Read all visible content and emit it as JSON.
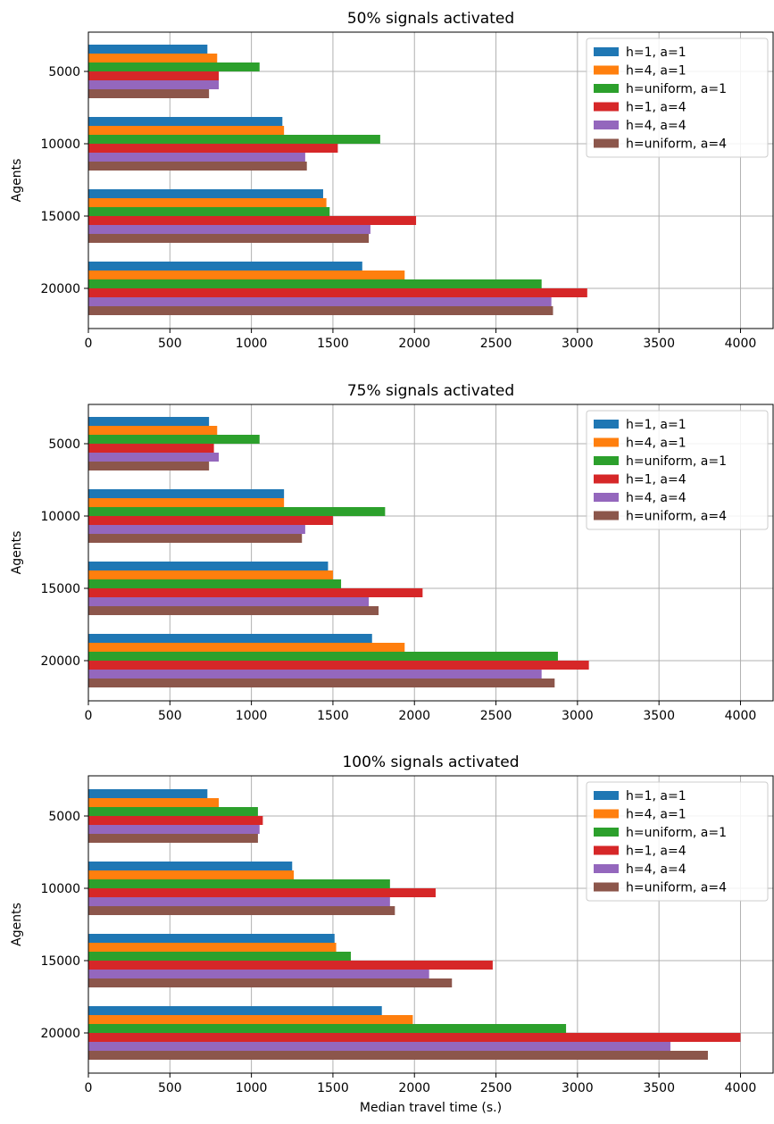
{
  "chart_data": [
    {
      "type": "bar",
      "orientation": "horizontal",
      "title": "50% signals activated",
      "xlabel": "",
      "ylabel": "Agents",
      "categories": [
        "5000",
        "10000",
        "15000",
        "20000"
      ],
      "xlim": [
        0,
        4200
      ],
      "xticks": [
        "0",
        "500",
        "1000",
        "1500",
        "2000",
        "2500",
        "3000",
        "3500",
        "4000"
      ],
      "grid": true,
      "legend_position": "top-right",
      "series": [
        {
          "name": "h=1, a=1",
          "color": "#1f77b4",
          "values": [
            730,
            1190,
            1440,
            1680
          ]
        },
        {
          "name": "h=4, a=1",
          "color": "#ff7f0e",
          "values": [
            790,
            1200,
            1460,
            1940
          ]
        },
        {
          "name": "h=uniform, a=1",
          "color": "#2ca02c",
          "values": [
            1050,
            1790,
            1480,
            2780
          ]
        },
        {
          "name": "h=1, a=4",
          "color": "#d62728",
          "values": [
            800,
            1530,
            2010,
            3060
          ]
        },
        {
          "name": "h=4, a=4",
          "color": "#9467bd",
          "values": [
            800,
            1330,
            1730,
            2840
          ]
        },
        {
          "name": "h=uniform, a=4",
          "color": "#8c564b",
          "values": [
            740,
            1340,
            1720,
            2850
          ]
        }
      ]
    },
    {
      "type": "bar",
      "orientation": "horizontal",
      "title": "75% signals activated",
      "xlabel": "",
      "ylabel": "Agents",
      "categories": [
        "5000",
        "10000",
        "15000",
        "20000"
      ],
      "xlim": [
        0,
        4200
      ],
      "xticks": [
        "0",
        "500",
        "1000",
        "1500",
        "2000",
        "2500",
        "3000",
        "3500",
        "4000"
      ],
      "grid": true,
      "legend_position": "top-right",
      "series": [
        {
          "name": "h=1, a=1",
          "color": "#1f77b4",
          "values": [
            740,
            1200,
            1470,
            1740
          ]
        },
        {
          "name": "h=4, a=1",
          "color": "#ff7f0e",
          "values": [
            790,
            1200,
            1500,
            1940
          ]
        },
        {
          "name": "h=uniform, a=1",
          "color": "#2ca02c",
          "values": [
            1050,
            1820,
            1550,
            2880
          ]
        },
        {
          "name": "h=1, a=4",
          "color": "#d62728",
          "values": [
            770,
            1500,
            2050,
            3070
          ]
        },
        {
          "name": "h=4, a=4",
          "color": "#9467bd",
          "values": [
            800,
            1330,
            1720,
            2780
          ]
        },
        {
          "name": "h=uniform, a=4",
          "color": "#8c564b",
          "values": [
            740,
            1310,
            1780,
            2860
          ]
        }
      ]
    },
    {
      "type": "bar",
      "orientation": "horizontal",
      "title": "100% signals activated",
      "xlabel": "Median travel time (s.)",
      "ylabel": "Agents",
      "categories": [
        "5000",
        "10000",
        "15000",
        "20000"
      ],
      "xlim": [
        0,
        4200
      ],
      "xticks": [
        "0",
        "500",
        "1000",
        "1500",
        "2000",
        "2500",
        "3000",
        "3500",
        "4000"
      ],
      "grid": true,
      "legend_position": "top-right",
      "series": [
        {
          "name": "h=1, a=1",
          "color": "#1f77b4",
          "values": [
            730,
            1250,
            1510,
            1800
          ]
        },
        {
          "name": "h=4, a=1",
          "color": "#ff7f0e",
          "values": [
            800,
            1260,
            1520,
            1990
          ]
        },
        {
          "name": "h=uniform, a=1",
          "color": "#2ca02c",
          "values": [
            1040,
            1850,
            1610,
            2930
          ]
        },
        {
          "name": "h=1, a=4",
          "color": "#d62728",
          "values": [
            1070,
            2130,
            2480,
            4000
          ]
        },
        {
          "name": "h=4, a=4",
          "color": "#9467bd",
          "values": [
            1050,
            1850,
            2090,
            3570
          ]
        },
        {
          "name": "h=uniform, a=4",
          "color": "#8c564b",
          "values": [
            1040,
            1880,
            2230,
            3800
          ]
        }
      ]
    }
  ]
}
